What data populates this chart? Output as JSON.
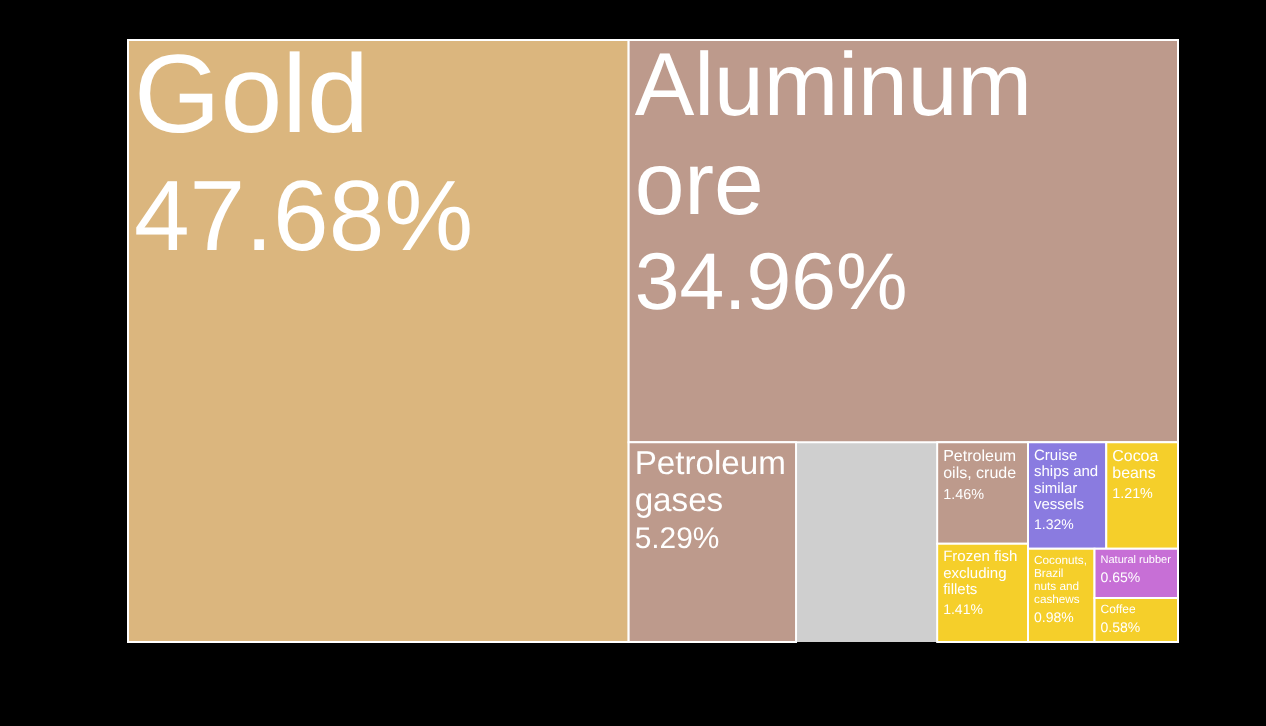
{
  "chart_data": {
    "type": "other",
    "categories": [
      "Gold",
      "Aluminum ore",
      "Petroleum gases",
      "Petroleum oils, crude",
      "Frozen fish excluding fillets",
      "Cruise ships and similar vessels",
      "Cocoa beans",
      "Coconuts, Brazil nuts and cashews",
      "Natural rubber",
      "Coffee"
    ],
    "values": [
      47.68,
      34.96,
      5.29,
      1.46,
      1.41,
      1.32,
      1.21,
      0.98,
      0.65,
      0.58
    ],
    "value_labels": [
      "47.68%",
      "34.96%",
      "5.29%",
      "1.46%",
      "1.41%",
      "1.32%",
      "1.21%",
      "0.98%",
      "0.65%",
      "0.58%"
    ],
    "colors": [
      "#dbb67e",
      "#bd9a8c",
      "#bd9a8c",
      "#bd9a8c",
      "#f5cf2a",
      "#8a7be0",
      "#f5cf2a",
      "#f5cf2a",
      "#c76fd6",
      "#f5cf2a"
    ]
  }
}
